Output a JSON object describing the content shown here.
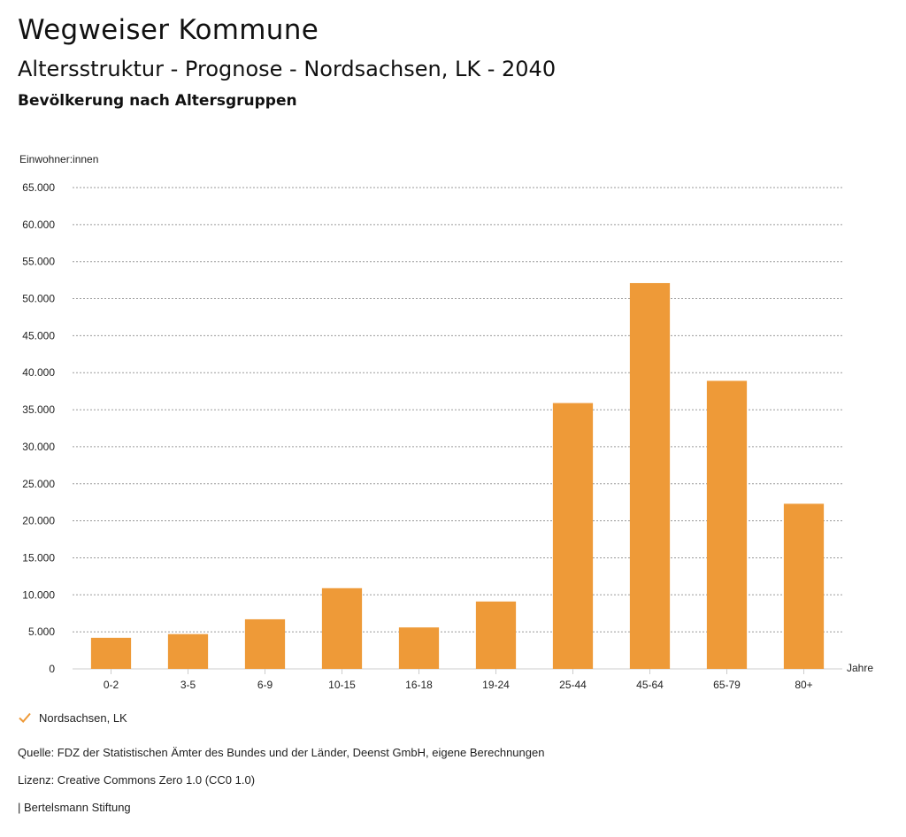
{
  "header": {
    "app_title": "Wegweiser Kommune",
    "chart_title": "Altersstruktur - Prognose - Nordsachsen, LK - 2040",
    "chart_subtitle": "Bevölkerung nach Altersgruppen"
  },
  "chart_data": {
    "type": "bar",
    "title": "Altersstruktur - Prognose - Nordsachsen, LK - 2040",
    "subtitle": "Bevölkerung nach Altersgruppen",
    "ylabel": "Einwohner:innen",
    "xlabel": "Jahre",
    "ylim": [
      0,
      65000
    ],
    "yticks": [
      0,
      5000,
      10000,
      15000,
      20000,
      25000,
      30000,
      35000,
      40000,
      45000,
      50000,
      55000,
      60000,
      65000
    ],
    "ytick_labels": [
      "0",
      "5.000",
      "10.000",
      "15.000",
      "20.000",
      "25.000",
      "30.000",
      "35.000",
      "40.000",
      "45.000",
      "50.000",
      "55.000",
      "60.000",
      "65.000"
    ],
    "grid": true,
    "legend_position": "bottom-left",
    "categories": [
      "0-2",
      "3-5",
      "6-9",
      "10-15",
      "16-18",
      "19-24",
      "25-44",
      "45-64",
      "65-79",
      "80+"
    ],
    "series": [
      {
        "name": "Nordsachsen, LK",
        "color": "#ee9a38",
        "values": [
          4200,
          4700,
          6700,
          10900,
          5600,
          9100,
          35900,
          52100,
          38900,
          22300
        ]
      }
    ]
  },
  "legend": {
    "label": "Nordsachsen, LK",
    "icon": "check-icon",
    "color": "#ee9a38"
  },
  "footer": {
    "source": "Quelle: FDZ der Statistischen Ämter des Bundes und der Länder, Deenst GmbH, eigene Berechnungen",
    "license": "Lizenz: Creative Commons Zero 1.0 (CC0 1.0)",
    "publisher": "| Bertelsmann Stiftung"
  }
}
